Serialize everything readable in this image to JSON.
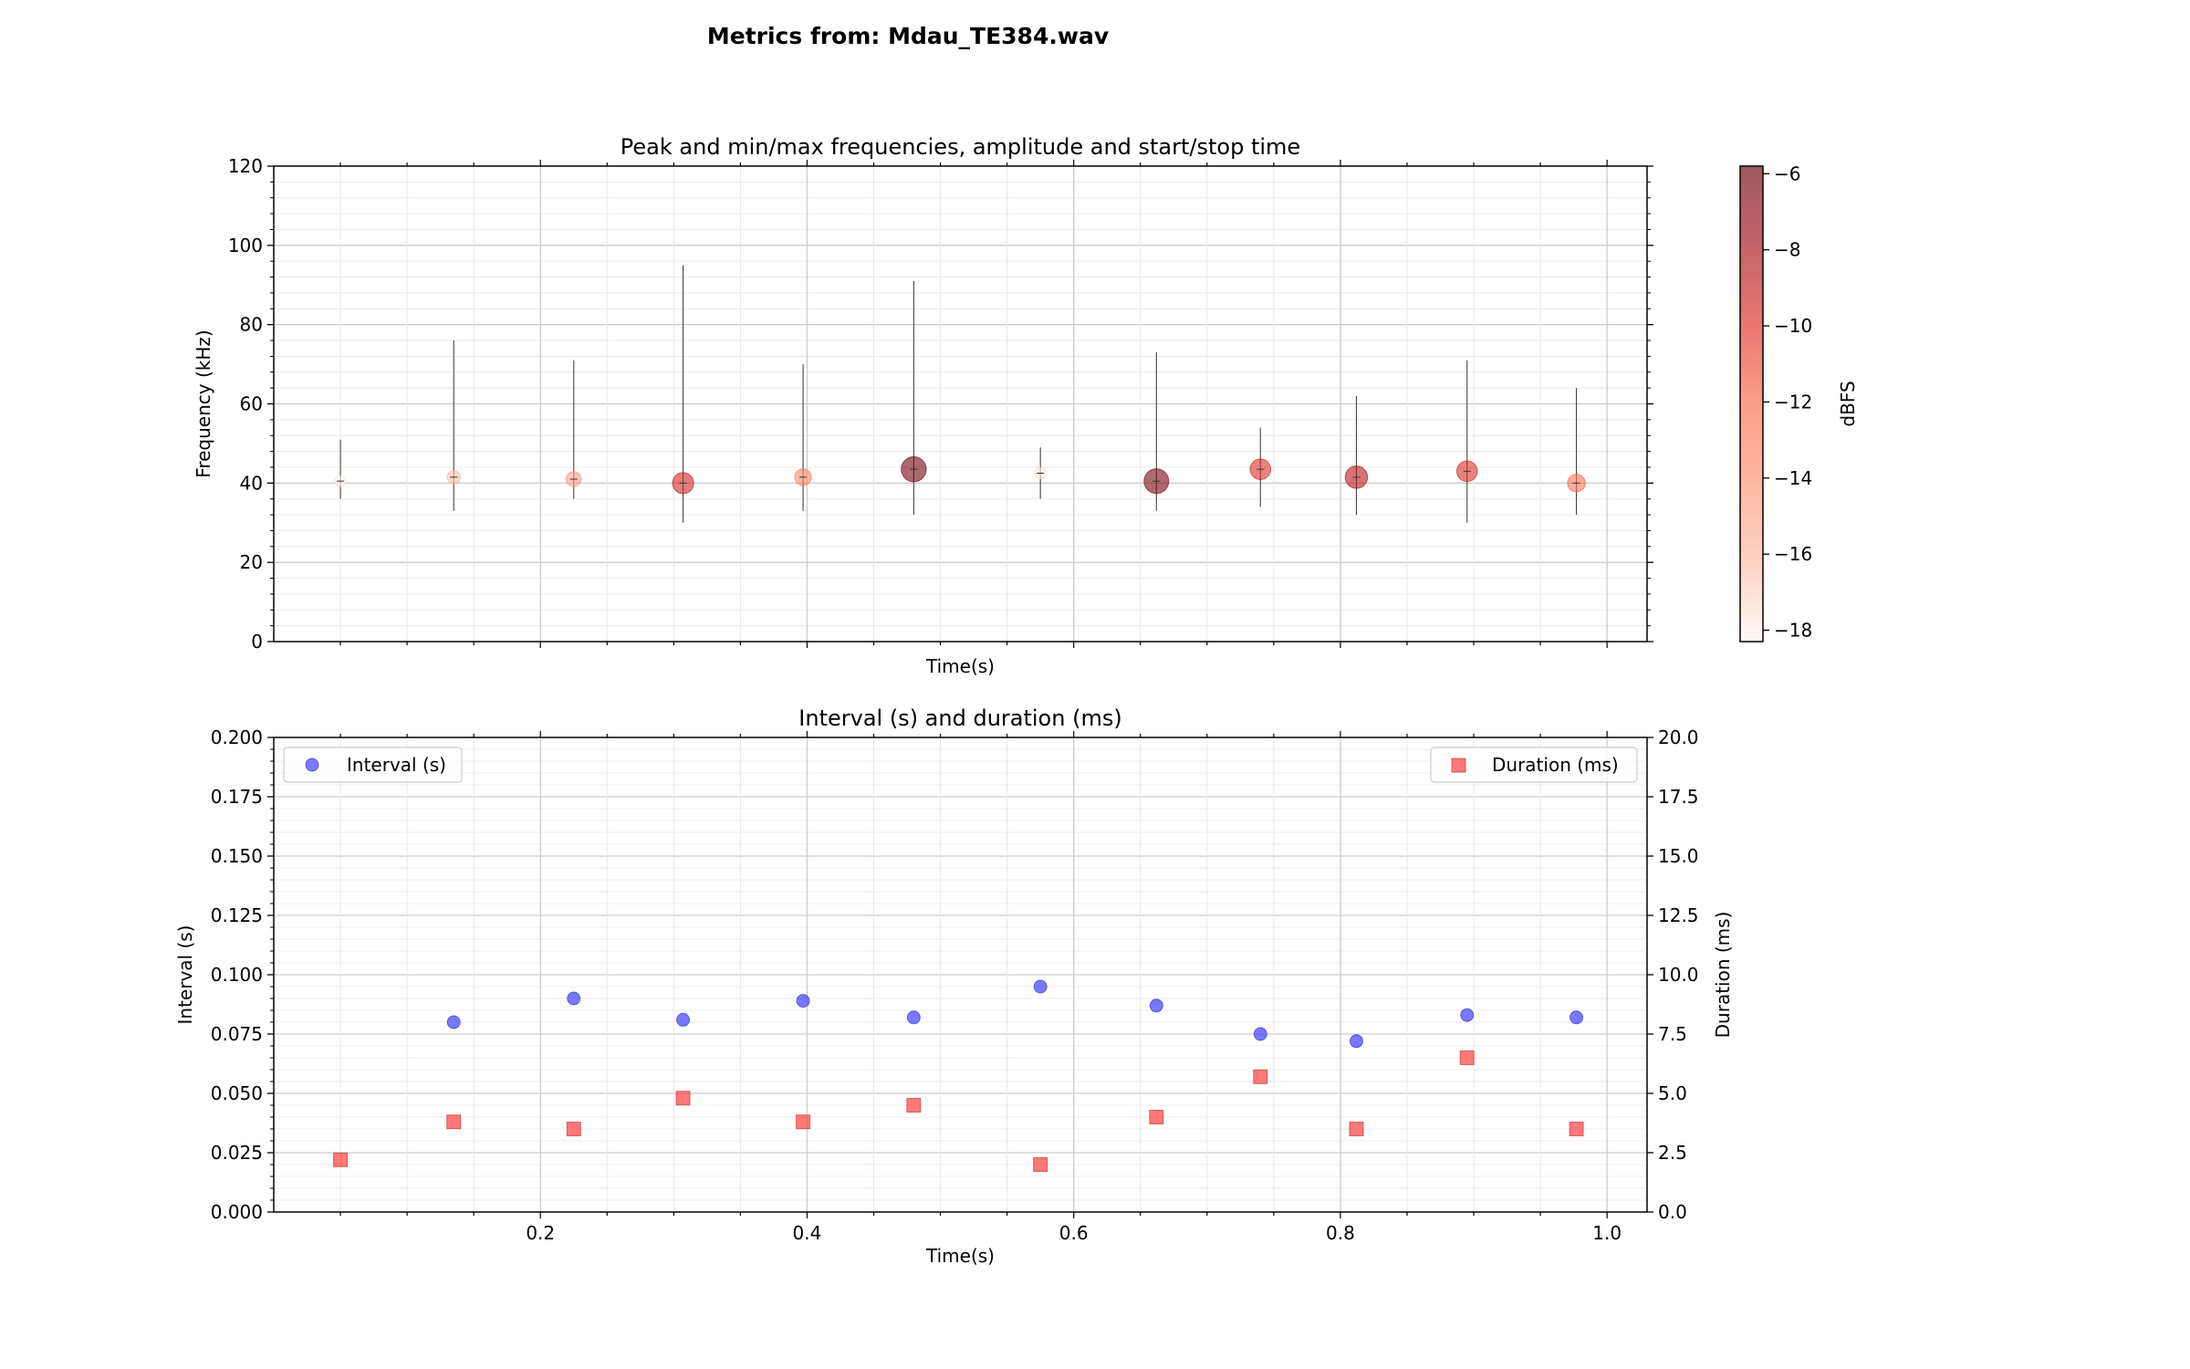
{
  "figure_title": "Metrics from: Mdau_TE384.wav",
  "chart_data": [
    {
      "type": "scatter",
      "title": "Peak and min/max frequencies, amplitude and start/stop time",
      "xlabel": "Time(s)",
      "ylabel": "Frequency (kHz)",
      "ylim": [
        0,
        120
      ],
      "yticks": [
        0,
        20,
        40,
        60,
        80,
        100,
        120
      ],
      "xlim": [
        0.0,
        1.03
      ],
      "grid": true,
      "colorbar": {
        "label": "dBFS",
        "range": [
          -18.3,
          -5.8
        ],
        "ticks": [
          -18,
          -16,
          -14,
          -12,
          -10,
          -8,
          -6
        ],
        "tick_labels": [
          "−18",
          "−16",
          "−14",
          "−12",
          "−10",
          "−8",
          "−6"
        ],
        "colormap_colors": [
          "#fff5f0",
          "#fcbba1",
          "#fc9272",
          "#fb6a4a",
          "#de2d26",
          "#a50f15",
          "#67000d"
        ]
      },
      "points": [
        {
          "time": 0.05,
          "peak_khz": 40.5,
          "min_khz": 36,
          "max_khz": 51,
          "dbfs": -18.3
        },
        {
          "time": 0.135,
          "peak_khz": 41.5,
          "min_khz": 33,
          "max_khz": 76,
          "dbfs": -16.5
        },
        {
          "time": 0.225,
          "peak_khz": 41,
          "min_khz": 36,
          "max_khz": 71,
          "dbfs": -14.8
        },
        {
          "time": 0.307,
          "peak_khz": 40,
          "min_khz": 30,
          "max_khz": 95,
          "dbfs": -9.5
        },
        {
          "time": 0.397,
          "peak_khz": 41.5,
          "min_khz": 33,
          "max_khz": 70,
          "dbfs": -13.5
        },
        {
          "time": 0.48,
          "peak_khz": 43.5,
          "min_khz": 32,
          "max_khz": 91,
          "dbfs": -6.2
        },
        {
          "time": 0.575,
          "peak_khz": 42.5,
          "min_khz": 36,
          "max_khz": 49,
          "dbfs": -18.0
        },
        {
          "time": 0.662,
          "peak_khz": 40.5,
          "min_khz": 33,
          "max_khz": 73,
          "dbfs": -6.5
        },
        {
          "time": 0.74,
          "peak_khz": 43.5,
          "min_khz": 34,
          "max_khz": 54,
          "dbfs": -10.0
        },
        {
          "time": 0.812,
          "peak_khz": 41.5,
          "min_khz": 32,
          "max_khz": 62,
          "dbfs": -8.5
        },
        {
          "time": 0.895,
          "peak_khz": 43,
          "min_khz": 30,
          "max_khz": 71,
          "dbfs": -10.0
        },
        {
          "time": 0.977,
          "peak_khz": 40,
          "min_khz": 32,
          "max_khz": 64,
          "dbfs": -12.5
        }
      ]
    },
    {
      "type": "scatter",
      "title": "Interval (s) and duration (ms)",
      "xlabel": "Time(s)",
      "ylabel_left": "Interval (s)",
      "ylabel_right": "Duration (ms)",
      "xlim": [
        0.0,
        1.03
      ],
      "xticks": [
        0.2,
        0.4,
        0.6,
        0.8,
        1.0
      ],
      "xtick_labels": [
        "0.2",
        "0.4",
        "0.6",
        "0.8",
        "1.0"
      ],
      "ylim_left": [
        0,
        0.2
      ],
      "yticks_left": [
        "0.000",
        "0.025",
        "0.050",
        "0.075",
        "0.100",
        "0.125",
        "0.150",
        "0.175",
        "0.200"
      ],
      "ylim_right": [
        0,
        20
      ],
      "yticks_right": [
        "0.0",
        "2.5",
        "5.0",
        "7.5",
        "10.0",
        "12.5",
        "15.0",
        "17.5",
        "20.0"
      ],
      "grid": true,
      "legend_left_placement": "top-left",
      "legend_right_placement": "top-right",
      "series": [
        {
          "name": "Interval (s)",
          "axis": "left",
          "marker": "circle",
          "color": "#4040ff",
          "x": [
            0.135,
            0.225,
            0.307,
            0.397,
            0.48,
            0.575,
            0.662,
            0.74,
            0.812,
            0.895,
            0.977
          ],
          "y": [
            0.08,
            0.09,
            0.081,
            0.089,
            0.082,
            0.095,
            0.087,
            0.075,
            0.072,
            0.083,
            0.082
          ]
        },
        {
          "name": "Duration (ms)",
          "axis": "right",
          "marker": "square",
          "color": "#ff4040",
          "x": [
            0.05,
            0.135,
            0.225,
            0.307,
            0.397,
            0.48,
            0.575,
            0.662,
            0.74,
            0.812,
            0.895,
            0.977
          ],
          "y": [
            2.2,
            3.8,
            3.5,
            4.8,
            3.8,
            4.5,
            2.0,
            4.0,
            5.7,
            3.5,
            6.5,
            3.5
          ]
        }
      ]
    }
  ]
}
